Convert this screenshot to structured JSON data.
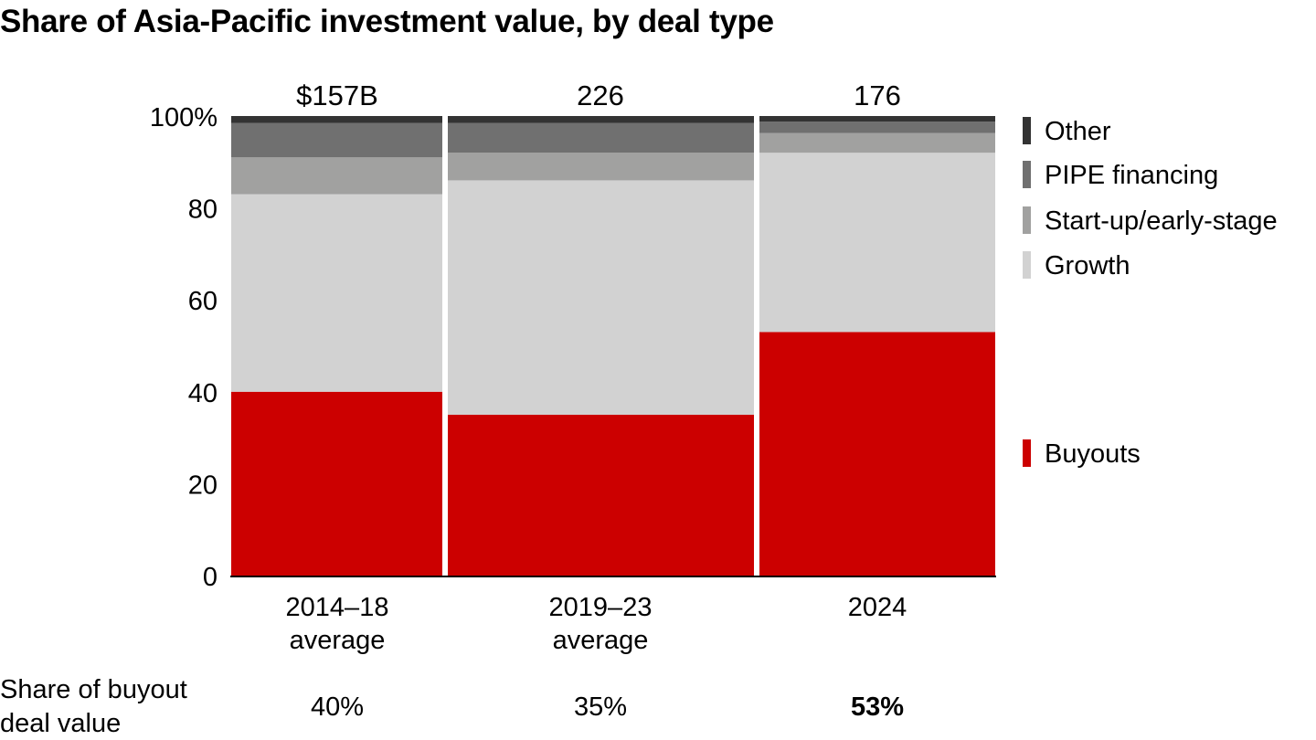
{
  "title": "Share of Asia-Pacific investment value, by deal type",
  "chart_data": {
    "type": "bar",
    "stacked": true,
    "normalized": true,
    "title": "Share of Asia-Pacific investment value, by deal type",
    "xlabel": "",
    "ylabel": "",
    "ylim": [
      0,
      100
    ],
    "yticks": [
      "0",
      "20",
      "40",
      "60",
      "80",
      "100%"
    ],
    "ytick_values": [
      0,
      20,
      40,
      60,
      80,
      100
    ],
    "categories": [
      [
        "2014–18",
        "average"
      ],
      [
        "2019–23",
        "average"
      ],
      [
        "2024"
      ]
    ],
    "totals": [
      "$157B",
      "226",
      "176"
    ],
    "series": [
      {
        "name": "Buyouts",
        "color": "#cc0000",
        "values": [
          40,
          35,
          53
        ]
      },
      {
        "name": "Growth",
        "color": "#d2d2d2",
        "values": [
          43,
          51,
          39
        ]
      },
      {
        "name": "Start-up/early-stage",
        "color": "#a1a1a0",
        "values": [
          8,
          6,
          4.3
        ]
      },
      {
        "name": "PIPE financing",
        "color": "#707070",
        "values": [
          7.5,
          6.5,
          2.5
        ]
      },
      {
        "name": "Other",
        "color": "#333333",
        "values": [
          1.5,
          1.5,
          1.2
        ]
      }
    ],
    "legend": {
      "position": "right",
      "order": [
        "Other",
        "PIPE financing",
        "Start-up/early-stage",
        "Growth",
        "Buyouts"
      ]
    },
    "footer": {
      "label": [
        "Share of buyout",
        "deal value"
      ],
      "values": [
        "40%",
        "35%",
        "53%"
      ],
      "highlight_index": 2,
      "highlight_color": "#cc0000"
    }
  }
}
